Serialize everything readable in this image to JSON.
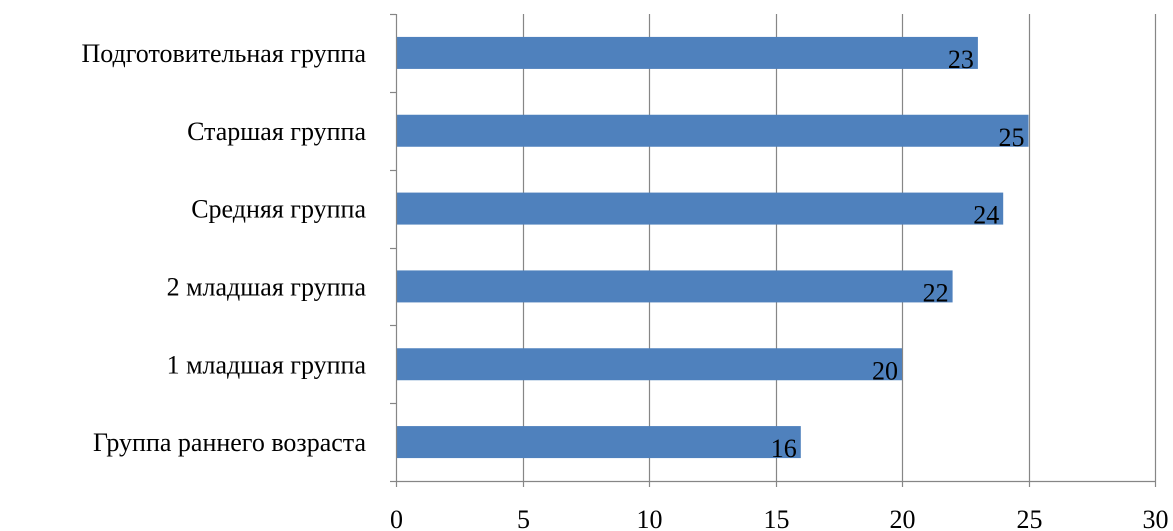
{
  "chart_data": {
    "type": "bar",
    "orientation": "horizontal",
    "title": "",
    "xlabel": "",
    "ylabel": "",
    "categories": [
      "Подготовительная группа",
      "Старшая группа",
      "Средняя группа",
      "2 младшая группа",
      "1 младшая группа",
      "Группа раннего возраста"
    ],
    "values": [
      23,
      25,
      24,
      22,
      20,
      16
    ],
    "data_labels": [
      "23",
      "25",
      "24",
      "22",
      "20",
      "16"
    ],
    "xlim": [
      0,
      30
    ],
    "x_ticks": [
      "0",
      "5",
      "10",
      "15",
      "20",
      "25",
      "30"
    ],
    "vertical_grid": true,
    "legend": "none",
    "bar_color": "#4F81BD",
    "grid_color": "#868686"
  }
}
